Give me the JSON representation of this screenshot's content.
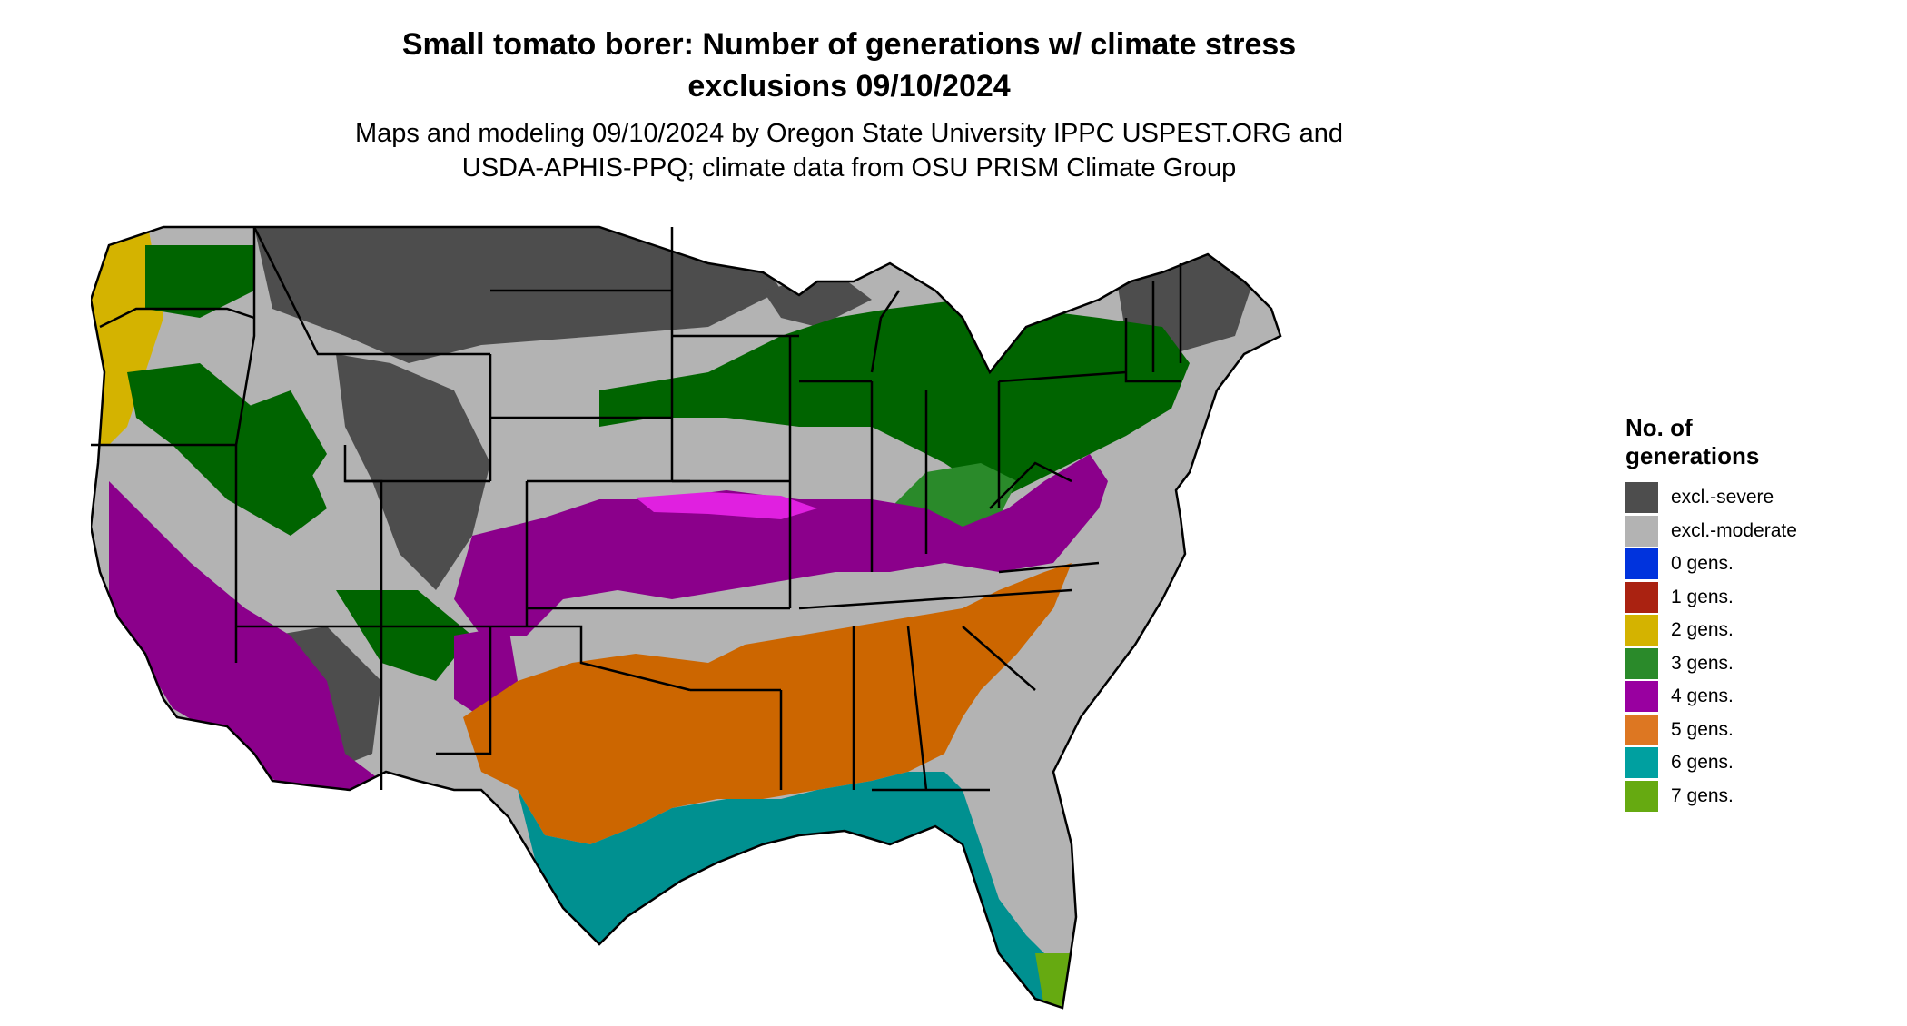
{
  "header": {
    "title_line1": "Small tomato borer: Number of generations w/ climate stress",
    "title_line2": "exclusions 09/10/2024",
    "subtitle_line1": "Maps and modeling 09/10/2024 by Oregon State University IPPC USPEST.ORG and",
    "subtitle_line2": "USDA-APHIS-PPQ; climate data from OSU PRISM Climate Group"
  },
  "legend": {
    "title_line1": "No. of",
    "title_line2": "generations",
    "items": [
      {
        "label": "excl.-severe",
        "color": "#4d4d4d"
      },
      {
        "label": "excl.-moderate",
        "color": "#b3b3b3"
      },
      {
        "label": "0 gens.",
        "color": "#0033dd"
      },
      {
        "label": "1 gens.",
        "color": "#aa2211"
      },
      {
        "label": "2 gens.",
        "color": "#d4b300"
      },
      {
        "label": "3 gens.",
        "color": "#2a8a2a"
      },
      {
        "label": "4 gens.",
        "color": "#9900a0"
      },
      {
        "label": "5 gens.",
        "color": "#dd7722"
      },
      {
        "label": "6 gens.",
        "color": "#00a0a0"
      },
      {
        "label": "7 gens.",
        "color": "#66aa11"
      }
    ]
  },
  "map_colors": {
    "severe": "#4d4d4d",
    "moderate": "#b3b3b3",
    "two": "#d4b300",
    "three": "#006400",
    "three_light": "#2a8a2a",
    "four": "#8b008b",
    "four_bright": "#e020e0",
    "five": "#cc6600",
    "six": "#009090",
    "seven": "#66aa11"
  }
}
